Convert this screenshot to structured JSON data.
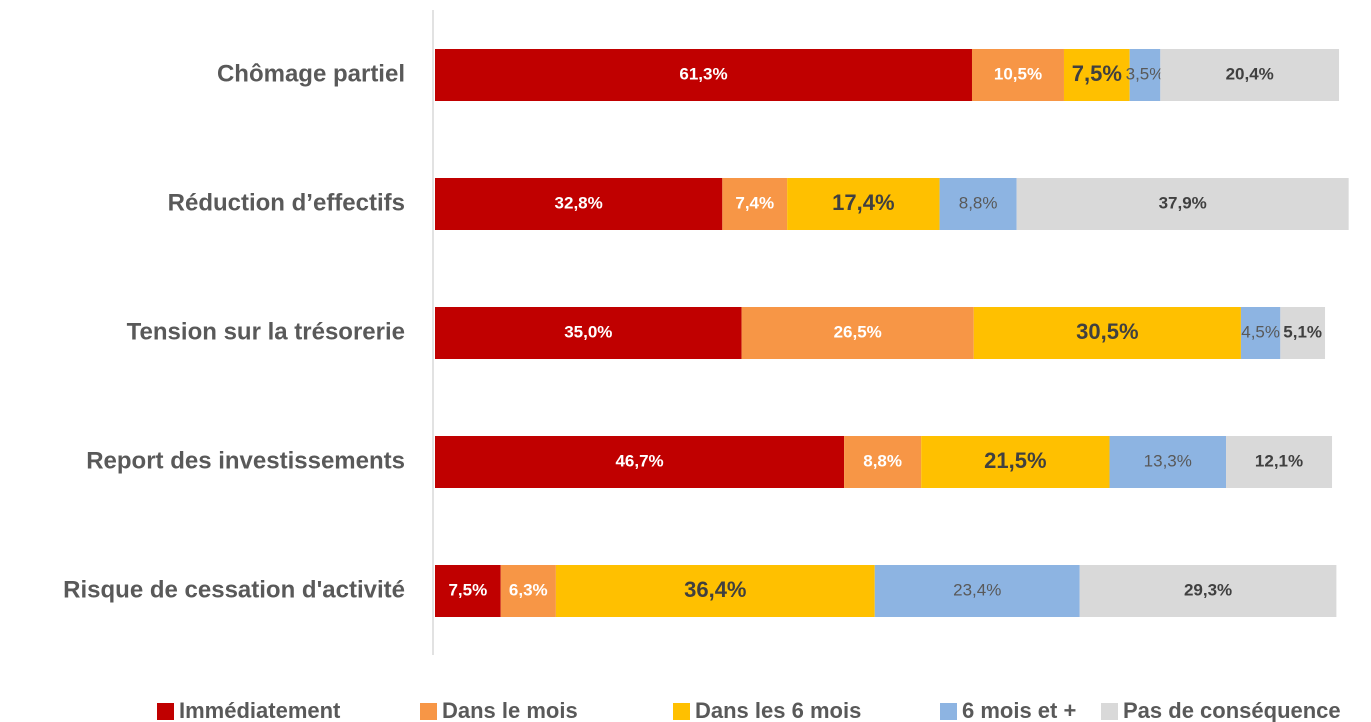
{
  "chart_data": {
    "type": "stacked-barh",
    "categories": [
      "Chômage partiel",
      "Réduction d’effectifs",
      "Tension sur la trésorerie",
      "Report des investissements",
      "Risque de cessation d'activité"
    ],
    "series": [
      {
        "name": "Immédiatement",
        "color": "#c00000",
        "values": [
          61.3,
          32.8,
          35.0,
          46.7,
          7.5
        ],
        "value_labels": [
          "61,3%",
          "32,8%",
          "35,0%",
          "46,7%",
          "7,5%"
        ]
      },
      {
        "name": "Dans le mois",
        "color": "#f79646",
        "values": [
          10.5,
          7.4,
          26.5,
          8.8,
          6.3
        ],
        "value_labels": [
          "10,5%",
          "7,4%",
          "26,5%",
          "8,8%",
          "6,3%"
        ]
      },
      {
        "name": "Dans les 6 mois",
        "color": "#ffc000",
        "values": [
          7.5,
          17.4,
          30.5,
          21.5,
          36.4
        ],
        "value_labels": [
          "7,5%",
          "17,4%",
          "30,5%",
          "21,5%",
          "36,4%"
        ]
      },
      {
        "name": "6 mois et +",
        "color": "#8db4e2",
        "values": [
          3.5,
          8.8,
          4.5,
          13.3,
          23.4
        ],
        "value_labels": [
          "3,5%",
          "8,8%",
          "4,5%",
          "13,3%",
          "23,4%"
        ]
      },
      {
        "name": "Pas de conséquence",
        "color": "#d9d9d9",
        "values": [
          20.4,
          37.9,
          5.1,
          12.1,
          29.3
        ],
        "value_labels": [
          "20,4%",
          "37,9%",
          "5,1%",
          "12,1%",
          "29,3%"
        ]
      }
    ],
    "legend": "bottom"
  }
}
